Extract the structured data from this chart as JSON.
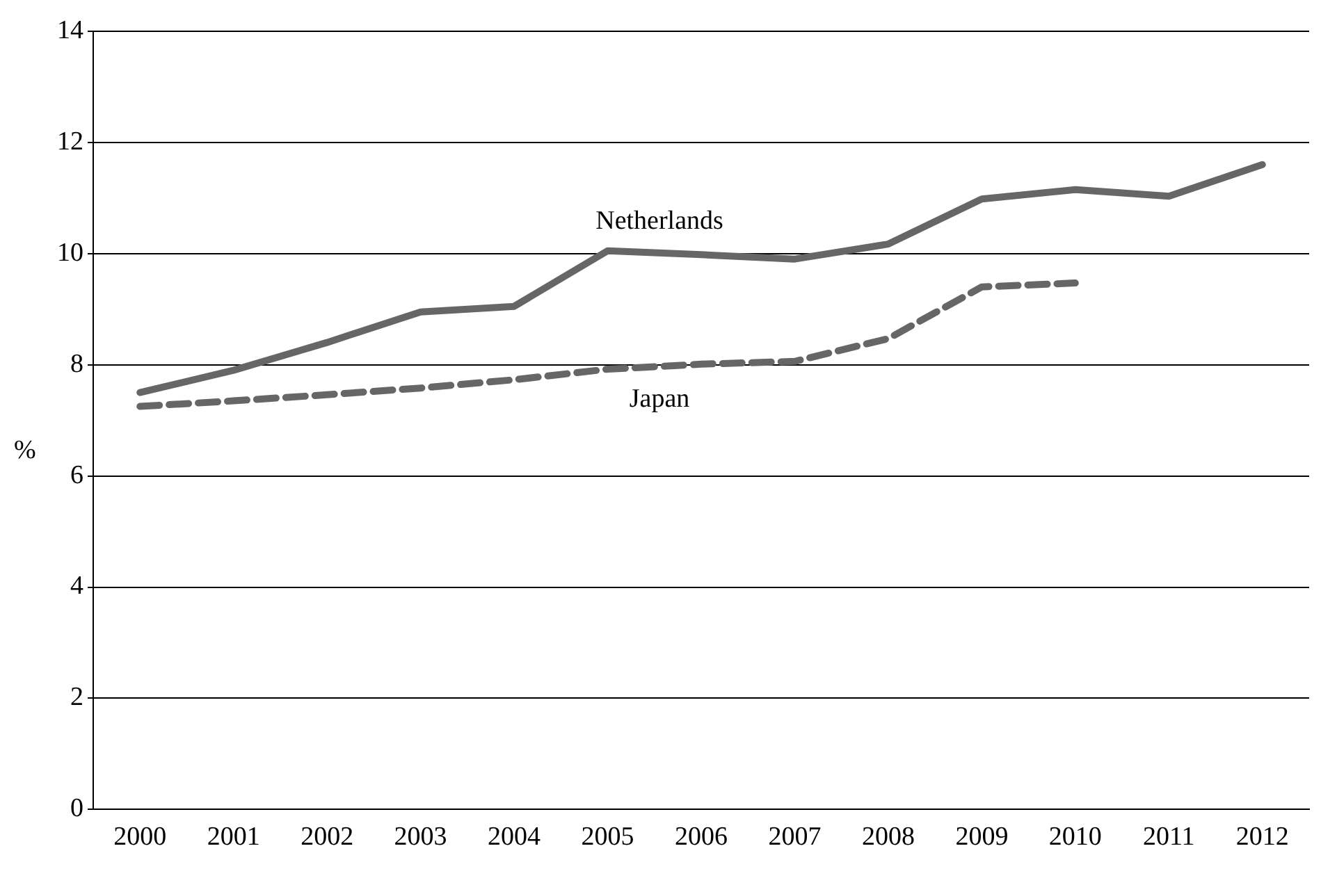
{
  "chart_data": {
    "type": "line",
    "ylabel": "%",
    "categories": [
      "2000",
      "2001",
      "2002",
      "2003",
      "2004",
      "2005",
      "2006",
      "2007",
      "2008",
      "2009",
      "2010",
      "2011",
      "2012"
    ],
    "series": [
      {
        "name": "Netherlands",
        "color": "#666666",
        "line_style": "solid",
        "values": [
          7.5,
          7.9,
          8.4,
          8.95,
          9.05,
          10.05,
          9.98,
          9.9,
          10.17,
          10.98,
          11.15,
          11.03,
          11.6
        ]
      },
      {
        "name": "Japan",
        "color": "#666666",
        "line_style": "dashed",
        "values": [
          7.25,
          7.35,
          7.46,
          7.58,
          7.73,
          7.92,
          8.01,
          8.06,
          8.47,
          9.4,
          9.47,
          null,
          null
        ]
      }
    ],
    "ylim": [
      0,
      14
    ],
    "yticks": [
      0,
      2,
      4,
      6,
      8,
      10,
      12,
      14
    ],
    "grid": "y",
    "legend": false,
    "marker": "none"
  }
}
